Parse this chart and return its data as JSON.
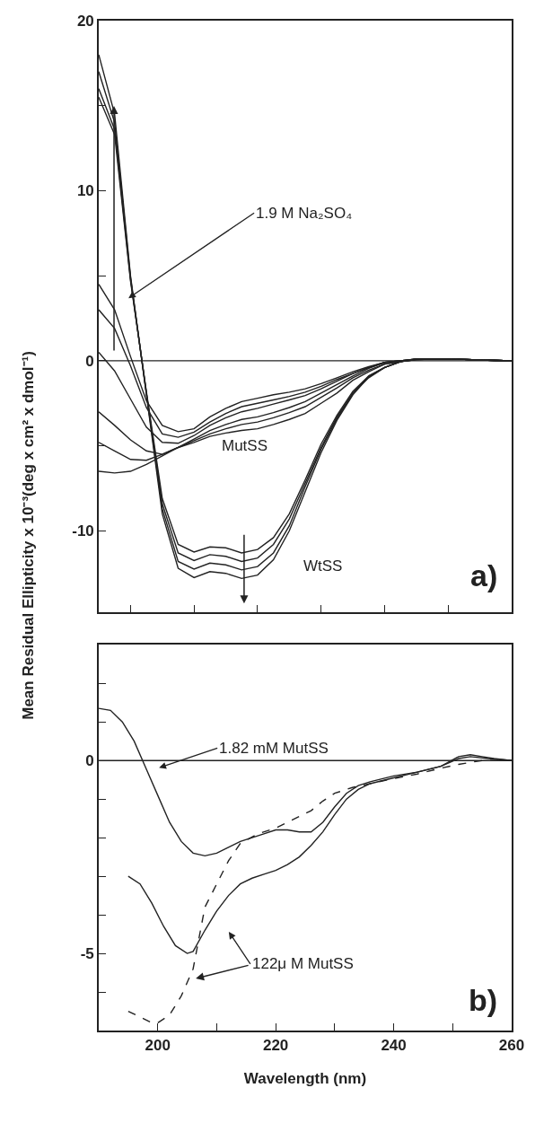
{
  "chart_data": [
    {
      "type": "line",
      "ylabel": "Mean Residual Ellipticity x 10⁻³(deg x cm² x dmol⁻¹)",
      "ylim": [
        -14.8,
        20
      ],
      "tick_labels": "y",
      "categories": [
        null,
        null,
        null,
        null,
        null,
        null,
        null,
        null,
        null,
        null,
        null,
        null,
        null,
        null,
        null,
        null,
        null,
        null,
        null,
        null,
        null,
        null,
        null,
        null,
        null,
        null,
        null
      ],
      "yticks": [
        -10,
        {
          "value": -5,
          "label": null
        },
        0,
        {
          "value": 5,
          "label": null
        },
        10,
        {
          "value": 15,
          "label": null
        },
        20
      ],
      "ref_lines": [
        {
          "axis": "y",
          "value": 0,
          "color": "#222222"
        }
      ],
      "annotations": [
        "1.9 M Na₂SO₄",
        "MutSS",
        "WtSS",
        "a)"
      ],
      "series": [
        {
          "color": "#222222",
          "values": [
            18,
            14.5,
            5,
            -2,
            -9,
            -12.2,
            -12.75,
            -12.4,
            -12.5,
            -12.8,
            -12.6,
            -11.7,
            -10,
            -7.7,
            -5.4,
            -3.5,
            -2,
            -0.95,
            -0.4,
            -0.05,
            0.07,
            0.1,
            0.1,
            0.08,
            0.05,
            0.02,
            0
          ]
        },
        {
          "color": "#222222",
          "values": [
            17,
            14,
            4.9,
            -1.9,
            -8.7,
            -11.8,
            -12.25,
            -11.9,
            -12,
            -12.3,
            -12.1,
            -11.3,
            -9.7,
            -7.4,
            -5.2,
            -3.4,
            -1.9,
            -1,
            -0.4,
            -0.05,
            0.07,
            0.1,
            0.1,
            0.08,
            0.05,
            0.02,
            0
          ]
        },
        {
          "color": "#222222",
          "values": [
            16,
            13.6,
            4.8,
            -1.9,
            -8.4,
            -11.3,
            -11.75,
            -11.4,
            -11.5,
            -11.8,
            -11.6,
            -10.8,
            -9.3,
            -7.2,
            -5.1,
            -3.3,
            -1.9,
            -0.9,
            -0.4,
            -0.05,
            0.07,
            0.1,
            0.1,
            0.08,
            0.05,
            0.02,
            0
          ]
        },
        {
          "color": "#222222",
          "values": [
            15.5,
            13.3,
            4.7,
            -1.8,
            -8.1,
            -10.8,
            -11.25,
            -10.95,
            -11,
            -11.3,
            -11.1,
            -10.4,
            -9,
            -7,
            -4.9,
            -3.2,
            -1.8,
            -0.9,
            -0.4,
            -0.05,
            0.07,
            0.1,
            0.1,
            0.08,
            0.05,
            0.02,
            0
          ]
        },
        {
          "color": "#222222",
          "values": [
            4.5,
            3,
            0.25,
            -2.35,
            -3.8,
            -4.17,
            -4,
            -3.3,
            -2.8,
            -2.4,
            -2.2,
            -2,
            -1.85,
            -1.65,
            -1.35,
            -1,
            -0.65,
            -0.35,
            -0.1,
            0,
            0.1,
            0.1,
            0.1,
            0.08,
            0.05,
            0.02,
            0
          ]
        },
        {
          "color": "#222222",
          "values": [
            3,
            1.9,
            -0.3,
            -2.75,
            -4.3,
            -4.5,
            -4.2,
            -3.6,
            -3.1,
            -2.7,
            -2.5,
            -2.3,
            -2.1,
            -1.85,
            -1.5,
            -1.1,
            -0.75,
            -0.4,
            -0.1,
            0,
            0.1,
            0.1,
            0.1,
            0.08,
            0.05,
            0.02,
            0
          ]
        },
        {
          "color": "#222222",
          "values": [
            0.5,
            -0.6,
            -2.25,
            -3.9,
            -4.8,
            -4.85,
            -4.4,
            -3.8,
            -3.35,
            -3,
            -2.8,
            -2.55,
            -2.3,
            -2.05,
            -1.65,
            -1.2,
            -0.75,
            -0.4,
            -0.1,
            0,
            0.1,
            0.1,
            0.1,
            0.08,
            0.05,
            0.02,
            0
          ]
        },
        {
          "color": "#222222",
          "values": [
            -3,
            -3.8,
            -4.65,
            -5.3,
            -5.5,
            -5.1,
            -4.6,
            -4.1,
            -3.75,
            -3.45,
            -3.3,
            -3.05,
            -2.75,
            -2.4,
            -1.9,
            -1.4,
            -0.9,
            -0.45,
            -0.1,
            0,
            0.1,
            0.1,
            0.1,
            0.08,
            0.05,
            0.02,
            0
          ]
        },
        {
          "color": "#222222",
          "values": [
            -4.8,
            -5.3,
            -5.8,
            -5.85,
            -5.5,
            -5.1,
            -4.7,
            -4.3,
            -4,
            -3.75,
            -3.6,
            -3.35,
            -3.05,
            -2.7,
            -2.15,
            -1.6,
            -1,
            -0.55,
            -0.2,
            -0.05,
            0.1,
            0.1,
            0.1,
            0.08,
            0.05,
            0.02,
            0
          ]
        },
        {
          "color": "#222222",
          "values": [
            -6.5,
            -6.6,
            -6.5,
            -6.1,
            -5.6,
            -5.1,
            -4.8,
            -4.45,
            -4.25,
            -4.1,
            -4,
            -3.75,
            -3.45,
            -3.1,
            -2.5,
            -1.9,
            -1.15,
            -0.65,
            -0.2,
            -0.05,
            0.1,
            0.1,
            0.1,
            0.08,
            0.05,
            0.02,
            0
          ]
        }
      ]
    },
    {
      "type": "line",
      "xlabel": "Wavelength (nm)",
      "xlim": [
        190,
        260
      ],
      "ylim": [
        -7,
        3
      ],
      "xticks": [
        200,
        {
          "value": 210,
          "label": null
        },
        220,
        {
          "value": 230,
          "label": null
        },
        240,
        {
          "value": 250,
          "label": null
        },
        260
      ],
      "yticks": [
        {
          "value": -6,
          "label": null
        },
        -5,
        {
          "value": -4,
          "label": null
        },
        {
          "value": -3,
          "label": null
        },
        {
          "value": -2,
          "label": null
        },
        {
          "value": -1,
          "label": null
        },
        0,
        {
          "value": 1,
          "label": null
        },
        {
          "value": 2,
          "label": null
        }
      ],
      "ref_lines": [
        {
          "axis": "y",
          "value": 0,
          "color": "#222222"
        }
      ],
      "annotations": [
        "1.82 mM MutSS",
        "122μ M MutSS",
        "b)"
      ],
      "series": [
        {
          "color": "#222222",
          "line_style": "solid",
          "x": [
            190,
            192,
            194,
            196,
            198,
            200,
            202,
            204,
            206,
            208,
            210,
            212,
            214,
            216,
            218,
            220,
            222,
            224,
            226,
            228,
            230,
            232,
            234,
            236,
            240,
            244,
            248,
            251,
            253,
            255,
            257,
            260
          ],
          "values": [
            1.35,
            1.3,
            1,
            0.5,
            -0.2,
            -0.9,
            -1.6,
            -2.1,
            -2.4,
            -2.47,
            -2.4,
            -2.25,
            -2.1,
            -2,
            -1.9,
            -1.8,
            -1.8,
            -1.85,
            -1.85,
            -1.6,
            -1.2,
            -0.85,
            -0.65,
            -0.55,
            -0.4,
            -0.3,
            -0.15,
            0.1,
            0.15,
            0.1,
            0.05,
            0
          ]
        },
        {
          "color": "#222222",
          "line_style": "solid",
          "x": [
            195,
            197,
            199,
            201,
            203,
            205,
            206,
            208,
            210,
            212,
            214,
            216,
            218,
            220,
            222,
            224,
            226,
            228,
            230,
            232,
            234,
            236,
            240,
            244,
            248,
            251,
            253,
            256,
            260
          ],
          "values": [
            -3,
            -3.2,
            -3.7,
            -4.3,
            -4.8,
            -5,
            -4.95,
            -4.4,
            -3.9,
            -3.5,
            -3.2,
            -3.05,
            -2.95,
            -2.85,
            -2.7,
            -2.5,
            -2.2,
            -1.85,
            -1.4,
            -1,
            -0.75,
            -0.6,
            -0.45,
            -0.3,
            -0.15,
            0.05,
            0.1,
            0.05,
            0
          ]
        },
        {
          "color": "#222222",
          "line_style": "dashed",
          "x": [
            195,
            197,
            199,
            200,
            202,
            204,
            206,
            207,
            208,
            210,
            212,
            214,
            217,
            220,
            222,
            226,
            228,
            230,
            233,
            236,
            239,
            244,
            248,
            251,
            255,
            260
          ],
          "values": [
            -6.5,
            -6.65,
            -6.8,
            -6.8,
            -6.6,
            -6.1,
            -5.4,
            -4.6,
            -3.8,
            -3.2,
            -2.6,
            -2.15,
            -1.9,
            -1.75,
            -1.6,
            -1.3,
            -1.05,
            -0.85,
            -0.7,
            -0.6,
            -0.5,
            -0.35,
            -0.2,
            -0.1,
            0,
            0
          ]
        }
      ]
    }
  ]
}
